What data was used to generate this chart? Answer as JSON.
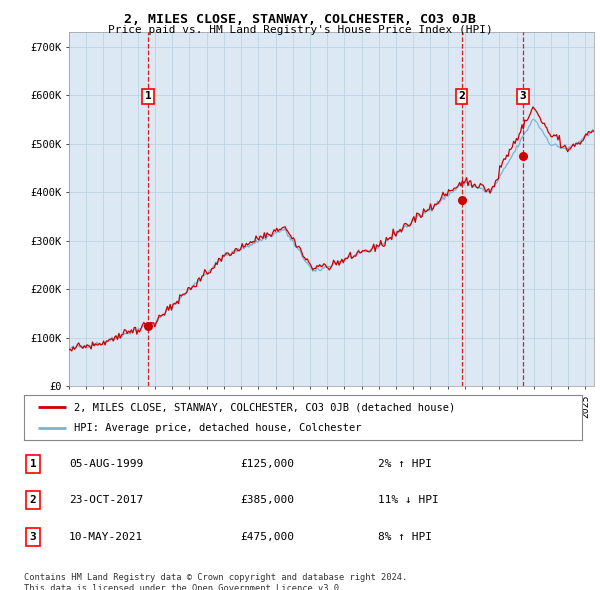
{
  "title": "2, MILES CLOSE, STANWAY, COLCHESTER, CO3 0JB",
  "subtitle": "Price paid vs. HM Land Registry's House Price Index (HPI)",
  "fig_bg_color": "#ffffff",
  "plot_bg_color": "#dce9f5",
  "ylim": [
    0,
    730000
  ],
  "yticks": [
    0,
    100000,
    200000,
    300000,
    400000,
    500000,
    600000,
    700000
  ],
  "ytick_labels": [
    "£0",
    "£100K",
    "£200K",
    "£300K",
    "£400K",
    "£500K",
    "£600K",
    "£700K"
  ],
  "sale_points": [
    {
      "date_num": 1999.59,
      "price": 125000,
      "label": "1"
    },
    {
      "date_num": 2017.81,
      "price": 385000,
      "label": "2"
    },
    {
      "date_num": 2021.36,
      "price": 475000,
      "label": "3"
    }
  ],
  "legend_entries": [
    "2, MILES CLOSE, STANWAY, COLCHESTER, CO3 0JB (detached house)",
    "HPI: Average price, detached house, Colchester"
  ],
  "table_rows": [
    {
      "num": "1",
      "date": "05-AUG-1999",
      "price": "£125,000",
      "hpi": "2% ↑ HPI"
    },
    {
      "num": "2",
      "date": "23-OCT-2017",
      "price": "£385,000",
      "hpi": "11% ↓ HPI"
    },
    {
      "num": "3",
      "date": "10-MAY-2021",
      "price": "£475,000",
      "hpi": "8% ↑ HPI"
    }
  ],
  "footer": "Contains HM Land Registry data © Crown copyright and database right 2024.\nThis data is licensed under the Open Government Licence v3.0.",
  "hpi_color": "#7ab3d4",
  "price_color": "#cc0000",
  "marker_color": "#cc0000",
  "vline_color": "#cc0000",
  "grid_color": "#b8cfe0"
}
